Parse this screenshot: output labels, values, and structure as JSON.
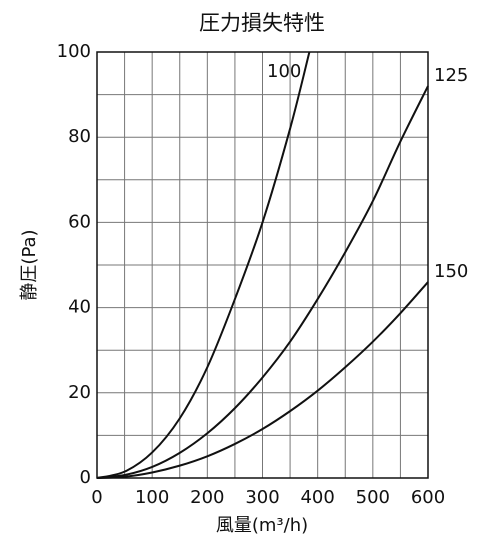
{
  "chart_data": {
    "type": "line",
    "title": "圧力損失特性",
    "x_label": "風量(m³/h)",
    "y_label": "静圧(Pa)",
    "xlim": [
      0,
      600
    ],
    "ylim": [
      0,
      100
    ],
    "xticks": [
      0,
      100,
      200,
      300,
      400,
      500,
      600
    ],
    "yticks": [
      0,
      20,
      40,
      60,
      80,
      100
    ],
    "x_minor_ticks": [
      50,
      150,
      250,
      350,
      450,
      550
    ],
    "y_minor_ticks": [
      10,
      30,
      50,
      70,
      90
    ],
    "grid": true,
    "series": [
      {
        "name": "100",
        "color": "#111111",
        "x": [
          0,
          50,
          100,
          150,
          200,
          250,
          300,
          350,
          385
        ],
        "values": [
          0,
          1.5,
          6,
          14,
          26,
          42,
          60,
          82,
          100
        ]
      },
      {
        "name": "125",
        "color": "#111111",
        "x": [
          0,
          50,
          100,
          150,
          200,
          250,
          300,
          350,
          400,
          450,
          500,
          550,
          600
        ],
        "values": [
          0,
          0.7,
          2.6,
          5.9,
          10.5,
          16.4,
          23.6,
          32,
          42,
          53,
          65,
          79,
          92
        ]
      },
      {
        "name": "150",
        "color": "#111111",
        "x": [
          0,
          50,
          100,
          150,
          200,
          250,
          300,
          350,
          400,
          450,
          500,
          550,
          600
        ],
        "values": [
          0,
          0.3,
          1.3,
          2.9,
          5.1,
          8,
          11.5,
          15.7,
          20.5,
          26,
          32,
          38.7,
          46
        ]
      }
    ]
  }
}
